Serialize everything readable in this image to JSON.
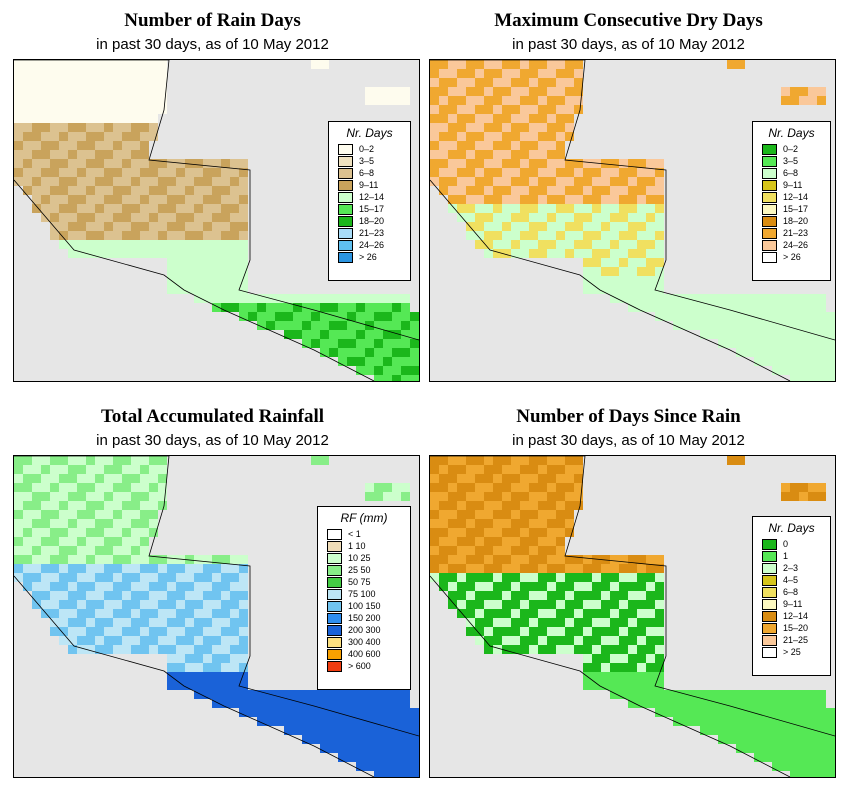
{
  "panels": [
    {
      "id": "rain-days",
      "title": "Number of Rain Days",
      "subtitle": "in past 30 days, as of  10 May 2012",
      "legend": {
        "title": "Nr. Days",
        "items": [
          {
            "label": "0–2",
            "color": "#fefcee"
          },
          {
            "label": "3–5",
            "color": "#efe2c0"
          },
          {
            "label": "6–8",
            "color": "#dcc290"
          },
          {
            "label": "9–11",
            "color": "#c9a35c"
          },
          {
            "label": "12–14",
            "color": "#ccffcc"
          },
          {
            "label": "15–17",
            "color": "#55e855"
          },
          {
            "label": "18–20",
            "color": "#1bb71b"
          },
          {
            "label": "21–23",
            "color": "#a8dcf8"
          },
          {
            "label": "24–26",
            "color": "#5fc0f0"
          },
          {
            "label": "> 26",
            "color": "#2c94e0"
          }
        ]
      }
    },
    {
      "id": "dry-days",
      "title": "Maximum Consecutive Dry Days",
      "subtitle": "in past 30 days, as of  10 May 2012",
      "legend": {
        "title": "Nr. Days",
        "items": [
          {
            "label": "0–2",
            "color": "#1bb71b"
          },
          {
            "label": "3–5",
            "color": "#55e855"
          },
          {
            "label": "6–8",
            "color": "#ccffcc"
          },
          {
            "label": "9–11",
            "color": "#d6c51b"
          },
          {
            "label": "12–14",
            "color": "#f0e060"
          },
          {
            "label": "15–17",
            "color": "#fcf8c0"
          },
          {
            "label": "18–20",
            "color": "#d98c12"
          },
          {
            "label": "21–23",
            "color": "#f0a830"
          },
          {
            "label": "24–26",
            "color": "#fac89a"
          },
          {
            "label": "> 26",
            "color": "#ffffff"
          }
        ]
      }
    },
    {
      "id": "rainfall",
      "title": "Total Accumulated Rainfall",
      "subtitle": "in past 30 days, as of  10 May 2012",
      "legend": {
        "title": "RF (mm)",
        "items": [
          {
            "label": "< 1",
            "color": "#ffffff"
          },
          {
            "label": "1   10",
            "color": "#f0ddb8"
          },
          {
            "label": "10   25",
            "color": "#ccffcc"
          },
          {
            "label": "25   50",
            "color": "#88ee88"
          },
          {
            "label": "50   75",
            "color": "#44cc44"
          },
          {
            "label": "75   100",
            "color": "#bde6f6"
          },
          {
            "label": "100   150",
            "color": "#70c4f0"
          },
          {
            "label": "150   200",
            "color": "#2e8ef0"
          },
          {
            "label": "200   300",
            "color": "#1a62d8"
          },
          {
            "label": "300   400",
            "color": "#fce080"
          },
          {
            "label": "400   600",
            "color": "#f8a000"
          },
          {
            "label": "> 600",
            "color": "#f03c10"
          }
        ]
      }
    },
    {
      "id": "since-rain",
      "title": "Number of Days Since Rain",
      "subtitle": "in past 30 days, as of  10 May 2012",
      "legend": {
        "title": "Nr. Days",
        "items": [
          {
            "label": "0",
            "color": "#1bb71b"
          },
          {
            "label": "1",
            "color": "#55e855"
          },
          {
            "label": "2–3",
            "color": "#ccffcc"
          },
          {
            "label": "4–5",
            "color": "#d6c51b"
          },
          {
            "label": "6–8",
            "color": "#f0e060"
          },
          {
            "label": "9–11",
            "color": "#fcf8c0"
          },
          {
            "label": "12–14",
            "color": "#d98c12"
          },
          {
            "label": "15–20",
            "color": "#f0a830"
          },
          {
            "label": "21–25",
            "color": "#fac89a"
          },
          {
            "label": "> 25",
            "color": "#ffffff"
          }
        ]
      }
    }
  ]
}
